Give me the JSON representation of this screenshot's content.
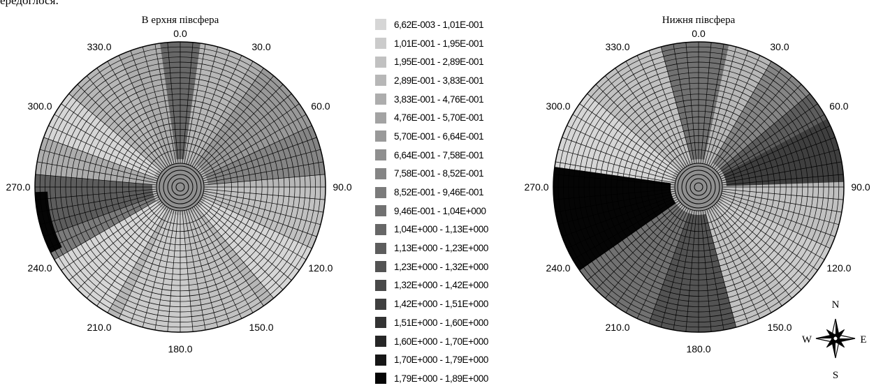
{
  "header_fragment": "ередоглося:",
  "chart_data": [
    {
      "type": "heatmap",
      "title": "В ерхня півсфера",
      "angle_ticks": [
        "0.0",
        "30.0",
        "60.0",
        "90.0",
        "120.0",
        "150.0",
        "180.0",
        "210.0",
        "240.0",
        "270.0",
        "300.0",
        "330.0"
      ],
      "grid": true,
      "sectors": [
        {
          "from": 0,
          "to": 360,
          "level": 3
        },
        {
          "from": 35,
          "to": 65,
          "level": 6
        },
        {
          "from": 30,
          "to": 35,
          "level": 4
        },
        {
          "from": 65,
          "to": 85,
          "level": 8
        },
        {
          "from": 90,
          "to": 115,
          "level": 2
        },
        {
          "from": 115,
          "to": 140,
          "level": 0
        },
        {
          "from": 145,
          "to": 175,
          "level": 2
        },
        {
          "from": 175,
          "to": 205,
          "level": 1
        },
        {
          "from": 210,
          "to": 240,
          "level": 0
        },
        {
          "from": 240,
          "to": 250,
          "level": 9
        },
        {
          "from": 250,
          "to": 275,
          "level": 12
        },
        {
          "from": 275,
          "to": 290,
          "level": 4
        },
        {
          "from": 290,
          "to": 310,
          "level": 0
        },
        {
          "from": 335,
          "to": 352,
          "level": 4
        },
        {
          "from": 352,
          "to": 368,
          "level": 11
        },
        {
          "from": 20,
          "to": 28,
          "level": 3
        }
      ],
      "rim_dark": {
        "from": 243,
        "to": 268,
        "level": 19
      }
    },
    {
      "type": "heatmap",
      "title": "Нижня півсфера",
      "angle_ticks": [
        "0.0",
        "30.0",
        "60.0",
        "90.0",
        "120.0",
        "150.0",
        "180.0",
        "210.0",
        "240.0",
        "270.0",
        "300.0",
        "330.0"
      ],
      "grid": true,
      "sectors": [
        {
          "from": 0,
          "to": 360,
          "level": 3
        },
        {
          "from": 345,
          "to": 372,
          "level": 10
        },
        {
          "from": 20,
          "to": 30,
          "level": 3
        },
        {
          "from": 30,
          "to": 50,
          "level": 8
        },
        {
          "from": 50,
          "to": 62,
          "level": 12
        },
        {
          "from": 62,
          "to": 88,
          "level": 15
        },
        {
          "from": 90,
          "to": 115,
          "level": 2
        },
        {
          "from": 115,
          "to": 140,
          "level": 1
        },
        {
          "from": 140,
          "to": 165,
          "level": 2
        },
        {
          "from": 165,
          "to": 200,
          "level": 13
        },
        {
          "from": 200,
          "to": 235,
          "level": 10
        },
        {
          "from": 235,
          "to": 278,
          "level": 19
        },
        {
          "from": 278,
          "to": 310,
          "level": 0
        },
        {
          "from": 310,
          "to": 345,
          "level": 2
        }
      ],
      "rim_dark": null
    }
  ],
  "legend": {
    "colors": [
      "#d6d6d6",
      "#cbcbcb",
      "#c1c1c1",
      "#b7b7b7",
      "#adadad",
      "#a3a3a3",
      "#999999",
      "#8f8f8f",
      "#858585",
      "#7b7b7b",
      "#717171",
      "#676767",
      "#5d5d5d",
      "#535353",
      "#494949",
      "#3f3f3f",
      "#333333",
      "#262626",
      "#161616",
      "#050505"
    ],
    "labels": [
      "6,62E-003 - 1,01E-001",
      "1,01E-001 - 1,95E-001",
      "1,95E-001 - 2,89E-001",
      "2,89E-001 - 3,83E-001",
      "3,83E-001 - 4,76E-001",
      "4,76E-001 - 5,70E-001",
      "5,70E-001 - 6,64E-001",
      "6,64E-001 - 7,58E-001",
      "7,58E-001 - 8,52E-001",
      "8,52E-001 - 9,46E-001",
      "9,46E-001 - 1,04E+000",
      "1,04E+000 - 1,13E+000",
      "1,13E+000 - 1,23E+000",
      "1,23E+000 - 1,32E+000",
      "1,32E+000 - 1,42E+000",
      "1,42E+000 - 1,51E+000",
      "1,51E+000 - 1,60E+000",
      "1,60E+000 - 1,70E+000",
      "1,70E+000 - 1,79E+000",
      "1,79E+000 - 1,89E+000"
    ]
  },
  "compass": {
    "n": "N",
    "s": "S",
    "e": "E",
    "w": "W",
    "icon": "compass-rose-icon"
  }
}
